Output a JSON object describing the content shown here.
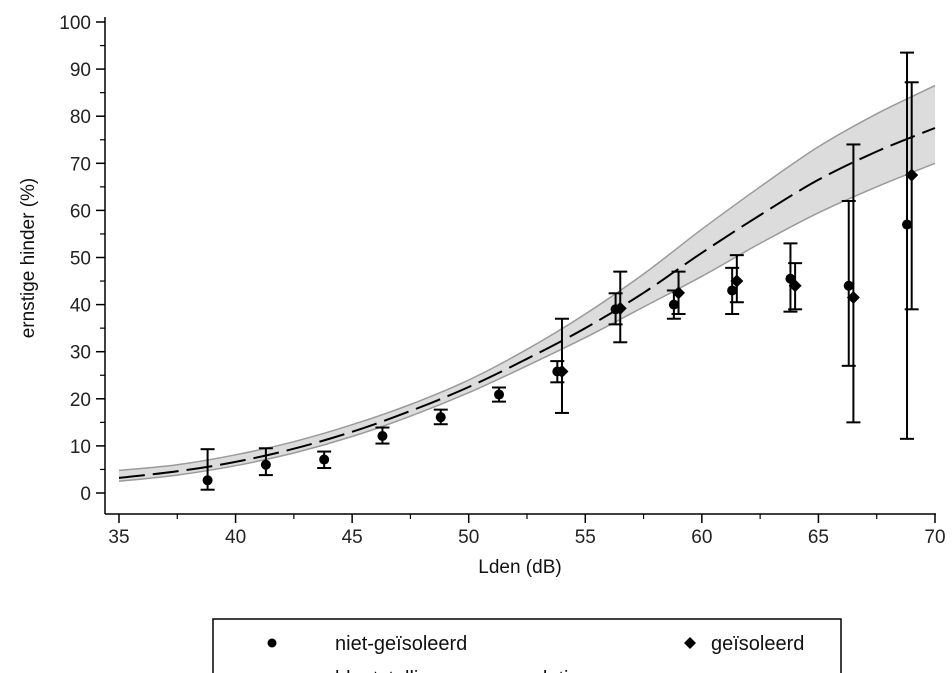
{
  "chart_data": {
    "type": "scatter",
    "xlabel": "Lden (dB)",
    "ylabel": "ernstige hinder (%)",
    "xlim": [
      35,
      70
    ],
    "ylim": [
      0,
      100
    ],
    "x_ticks": [
      35,
      40,
      45,
      50,
      55,
      60,
      65,
      70
    ],
    "y_ticks": [
      0,
      10,
      20,
      30,
      40,
      50,
      60,
      70,
      80,
      90,
      100
    ],
    "x_tick_labels": [
      "35",
      "40",
      "45",
      "50",
      "55",
      "60",
      "65",
      "70"
    ],
    "y_tick_labels": [
      "0",
      "10",
      "20",
      "30",
      "40",
      "50",
      "60",
      "70",
      "80",
      "90",
      "100"
    ],
    "grid": false,
    "legend_position": "bottom",
    "series": [
      {
        "name": "niet-geïsoleerd",
        "marker": "circle",
        "x": [
          38.8,
          41.3,
          43.8,
          46.3,
          48.8,
          51.3,
          53.8,
          56.3,
          58.8,
          61.3,
          63.8,
          66.3,
          68.8
        ],
        "y": [
          2.7,
          6.0,
          7.1,
          12.1,
          16.1,
          20.9,
          25.8,
          39.0,
          40.0,
          43.0,
          45.5,
          44.0,
          57.0
        ],
        "y_low": [
          0.7,
          3.8,
          5.3,
          10.5,
          14.6,
          19.4,
          23.5,
          35.8,
          37.0,
          38.0,
          38.5,
          27.0,
          11.5
        ],
        "y_high": [
          9.3,
          9.5,
          8.8,
          13.9,
          17.7,
          22.4,
          28.0,
          42.4,
          43.0,
          47.8,
          53.0,
          62.0,
          93.5
        ]
      },
      {
        "name": "geïsoleerd",
        "marker": "diamond",
        "x": [
          54.0,
          56.5,
          59.0,
          61.5,
          64.0,
          66.5,
          69.0
        ],
        "y": [
          25.8,
          39.2,
          42.5,
          45.0,
          44.0,
          41.5,
          67.5
        ],
        "y_low": [
          17.0,
          32.0,
          38.0,
          40.5,
          39.0,
          15.0,
          39.0
        ],
        "y_high": [
          37.0,
          47.0,
          47.0,
          50.5,
          48.8,
          74.0,
          87.2
        ]
      },
      {
        "name": "blootstelling-respons-relatie",
        "line_style": "dashed",
        "x": [
          35,
          37.5,
          40,
          42.5,
          45,
          47.5,
          50,
          52.5,
          55,
          57.5,
          60,
          62.5,
          65,
          67.5,
          70
        ],
        "y": [
          3.2,
          4.6,
          6.6,
          9.4,
          13.0,
          17.4,
          22.5,
          28.5,
          35.0,
          42.5,
          51.0,
          59.0,
          66.5,
          72.5,
          77.5
        ],
        "band_low": [
          2.5,
          3.8,
          5.8,
          8.5,
          12.0,
          16.3,
          21.3,
          27.0,
          33.0,
          39.5,
          46.0,
          53.0,
          59.5,
          65.0,
          70.0
        ],
        "band_high": [
          4.8,
          6.0,
          8.1,
          10.9,
          14.5,
          18.8,
          24.0,
          30.5,
          38.0,
          46.5,
          56.0,
          65.0,
          73.5,
          80.5,
          86.5
        ]
      }
    ],
    "colors": {
      "marker": "#000000",
      "band_fill": "#dcdcdc",
      "band_edge": "#9a9a9a",
      "axis": "#000000"
    }
  },
  "legend": {
    "item_circle": "niet-geïsoleerd",
    "item_diamond": "geïsoleerd",
    "item_line": "blootstelling-respons-relatie"
  }
}
